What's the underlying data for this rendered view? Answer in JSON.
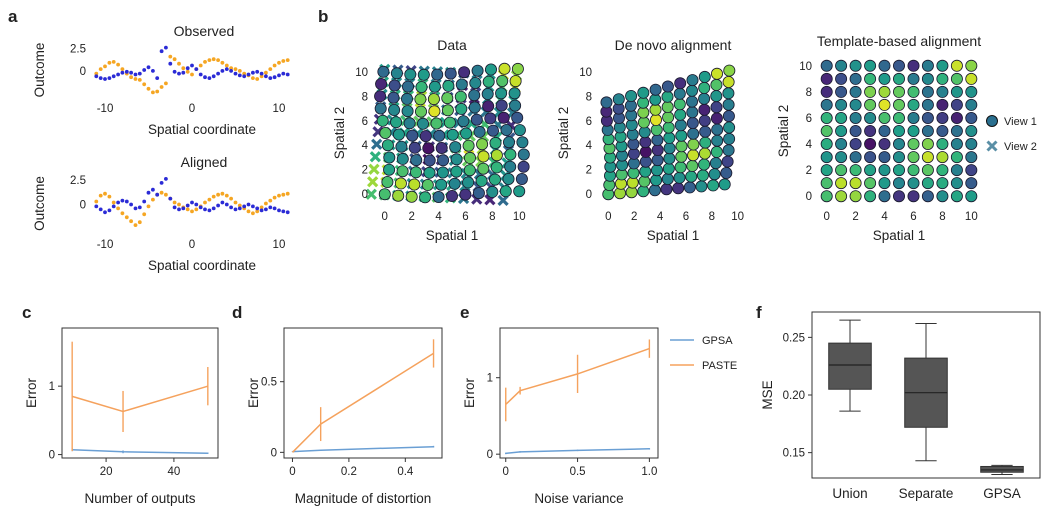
{
  "panels": {
    "a": "a",
    "b": "b",
    "c": "c",
    "d": "d",
    "e": "e",
    "f": "f"
  },
  "chart_data": [
    {
      "id": "a-observed",
      "type": "scatter",
      "title": "Observed",
      "xlabel": "Spatial coordinate",
      "ylabel": "Outcome",
      "xlim": [
        -11.5,
        11.5
      ],
      "ylim": [
        -2.8,
        3.0
      ],
      "xticks": [
        "-10",
        "0",
        "10"
      ],
      "xtick_values": [
        -10,
        0,
        10
      ],
      "yticks": [
        "0",
        "2.5"
      ],
      "ytick_values": [
        0,
        2.5
      ],
      "series": [
        {
          "color": "#f5a623",
          "x": [
            -11,
            -10.5,
            -10,
            -9.5,
            -9,
            -8.5,
            -8,
            -7.5,
            -7,
            -6.5,
            -6,
            -5.5,
            -5,
            -4.5,
            -4,
            -3.5,
            -3,
            -2.5,
            -2,
            -1.5,
            -1,
            -0.5,
            0,
            0.5,
            1,
            1.5,
            2,
            2.5,
            3,
            3.5,
            4,
            4.5,
            5,
            5.5,
            6,
            6.5,
            7,
            7.5,
            8,
            8.5,
            9,
            9.5,
            10,
            10.5,
            11
          ],
          "y": [
            -0.3,
            0.2,
            0.5,
            0.9,
            1.0,
            0.7,
            0.2,
            -0.3,
            -0.7,
            -0.9,
            -1.0,
            -1.5,
            -2.0,
            -2.4,
            -2.3,
            -1.8,
            -1.4,
            1.6,
            1.3,
            0.8,
            0.3,
            -0.1,
            -0.4,
            0.2,
            0.6,
            1.0,
            1.2,
            1.3,
            1.2,
            0.9,
            0.6,
            0.3,
            0.2,
            0.0,
            -0.3,
            -0.5,
            -0.8,
            -0.9,
            -0.6,
            -0.2,
            0.2,
            0.6,
            0.9,
            1.1,
            1.2
          ]
        },
        {
          "color": "#2b2bd6",
          "x": [
            -11,
            -10.5,
            -10,
            -9.5,
            -9,
            -8.5,
            -8,
            -7.5,
            -7,
            -6.5,
            -6,
            -5.5,
            -5,
            -4.5,
            -4,
            -3.5,
            -3,
            -2.5,
            -2,
            -1.5,
            -1,
            -0.5,
            0,
            0.5,
            1,
            1.5,
            2,
            2.5,
            3,
            3.5,
            4,
            4.5,
            5,
            5.5,
            6,
            6.5,
            7,
            7.5,
            8,
            8.5,
            9,
            9.5,
            10,
            10.5,
            11
          ],
          "y": [
            -0.6,
            -0.8,
            -0.9,
            -0.8,
            -0.6,
            -0.4,
            -0.2,
            -0.1,
            -0.2,
            -0.4,
            -0.3,
            0.1,
            0.4,
            0.0,
            -0.8,
            2.2,
            2.6,
            0.8,
            -0.1,
            -0.3,
            -0.2,
            0.3,
            0.6,
            0.2,
            -0.4,
            -0.7,
            -0.8,
            -0.6,
            -0.3,
            0.0,
            0.2,
            0.0,
            -0.3,
            -0.5,
            -0.6,
            -0.4,
            -0.2,
            -0.1,
            -0.3,
            -0.6,
            -0.8,
            -0.7,
            -0.5,
            -0.3,
            -0.4
          ]
        }
      ]
    },
    {
      "id": "a-aligned",
      "type": "scatter",
      "title": "Aligned",
      "xlabel": "Spatial coordinate",
      "ylabel": "Outcome",
      "xlim": [
        -11.5,
        11.5
      ],
      "ylim": [
        -2.8,
        3.0
      ],
      "xticks": [
        "-10",
        "0",
        "10"
      ],
      "xtick_values": [
        -10,
        0,
        10
      ],
      "yticks": [
        "0",
        "2.5"
      ],
      "ytick_values": [
        0,
        2.5
      ],
      "series": [
        {
          "color": "#f5a623",
          "x": [
            -11,
            -10.5,
            -10,
            -9.5,
            -9,
            -8.5,
            -8,
            -7.5,
            -7,
            -6.5,
            -6,
            -5.5,
            -5,
            -4.5,
            -4,
            -3.5,
            -3,
            -2.5,
            -2,
            -1.5,
            -1,
            -0.5,
            0,
            0.5,
            1,
            1.5,
            2,
            2.5,
            3,
            3.5,
            4,
            4.5,
            5,
            5.5,
            6,
            6.5,
            7,
            7.5,
            8,
            8.5,
            9,
            9.5,
            10,
            10.5,
            11
          ],
          "y": [
            0.3,
            0.9,
            1.1,
            0.8,
            0.2,
            -0.4,
            -0.9,
            -1.3,
            -1.7,
            -2.1,
            -1.8,
            -1.0,
            -0.2,
            0.5,
            1.0,
            1.2,
            1.0,
            0.6,
            0.2,
            0.0,
            -0.3,
            -0.5,
            -0.7,
            -0.5,
            -0.2,
            0.2,
            0.5,
            0.8,
            1.0,
            1.1,
            0.9,
            0.6,
            0.2,
            -0.1,
            -0.4,
            -0.7,
            -0.9,
            -0.7,
            -0.3,
            0.1,
            0.4,
            0.7,
            0.9,
            1.0,
            1.1
          ]
        },
        {
          "color": "#2b2bd6",
          "x": [
            -11,
            -10.5,
            -10,
            -9.5,
            -9,
            -8.5,
            -8,
            -7.5,
            -7,
            -6.5,
            -6,
            -5.5,
            -5,
            -4.5,
            -4,
            -3.5,
            -3,
            -2.5,
            -2,
            -1.5,
            -1,
            -0.5,
            0,
            0.5,
            1,
            1.5,
            2,
            2.5,
            3,
            3.5,
            4,
            4.5,
            5,
            5.5,
            6,
            6.5,
            7,
            7.5,
            8,
            8.5,
            9,
            9.5,
            10,
            10.5,
            11
          ],
          "y": [
            -0.2,
            -0.5,
            -0.8,
            -0.6,
            -0.2,
            0.2,
            0.4,
            0.3,
            0.0,
            -0.4,
            -0.3,
            0.3,
            1.2,
            1.5,
            1.0,
            2.2,
            2.6,
            0.6,
            -0.3,
            -0.5,
            -0.4,
            -0.1,
            0.2,
            0.0,
            -0.3,
            -0.5,
            -0.6,
            -0.4,
            -0.1,
            0.2,
            0.0,
            -0.3,
            -0.5,
            -0.4,
            -0.2,
            0.0,
            -0.2,
            -0.4,
            -0.6,
            -0.5,
            -0.3,
            -0.4,
            -0.6,
            -0.7,
            -0.8
          ]
        }
      ]
    },
    {
      "id": "b-data",
      "type": "scatter",
      "title": "Data",
      "xlabel": "Spatial 1",
      "ylabel": "Spatial 2",
      "xlim": [
        -0.8,
        10.8
      ],
      "ylim": [
        -0.8,
        10.8
      ],
      "xticks": [
        "0",
        "2",
        "4",
        "6",
        "8",
        "10"
      ],
      "yticks": [
        "0",
        "2",
        "4",
        "6",
        "8",
        "10"
      ],
      "grid_n": 11,
      "grid_distortion": "data",
      "legend": [
        {
          "marker": "circle",
          "label": "View 1"
        },
        {
          "marker": "x",
          "label": "View 2"
        }
      ]
    },
    {
      "id": "b-denovo",
      "type": "scatter",
      "title": "De novo alignment",
      "xlabel": "Spatial 1",
      "ylabel": "Spatial 2",
      "xlim": [
        -0.8,
        10.8
      ],
      "ylim": [
        -0.8,
        10.8
      ],
      "xticks": [
        "0",
        "2",
        "4",
        "6",
        "8",
        "10"
      ],
      "yticks": [
        "0",
        "2",
        "4",
        "6",
        "8",
        "10"
      ],
      "grid_n": 11,
      "grid_distortion": "denovo"
    },
    {
      "id": "b-template",
      "type": "scatter",
      "title": "Template-based alignment",
      "xlabel": "Spatial 1",
      "ylabel": "Spatial 2",
      "xlim": [
        -0.6,
        10.6
      ],
      "ylim": [
        -0.6,
        10.6
      ],
      "xticks": [
        "0",
        "2",
        "4",
        "6",
        "8",
        "10"
      ],
      "yticks": [
        "0",
        "2",
        "4",
        "6",
        "8",
        "10"
      ],
      "grid_n": 11,
      "grid_distortion": "none"
    },
    {
      "id": "c",
      "type": "line",
      "xlabel": "Number of outputs",
      "ylabel": "Error",
      "xlim": [
        7,
        53
      ],
      "ylim": [
        -0.05,
        1.85
      ],
      "xticks": [
        "20",
        "40"
      ],
      "xtick_values": [
        20,
        40
      ],
      "yticks": [
        "0",
        "1"
      ],
      "ytick_values": [
        0,
        1
      ],
      "series": [
        {
          "name": "GPSA",
          "color": "#6a9fd4",
          "x": [
            10,
            25,
            50
          ],
          "y": [
            0.07,
            0.04,
            0.02
          ],
          "err": [
            0.02,
            0.02,
            0.01
          ]
        },
        {
          "name": "PASTE",
          "color": "#f5a25d",
          "x": [
            10,
            25,
            50
          ],
          "y": [
            0.85,
            0.63,
            1.0
          ],
          "err": [
            0.8,
            0.3,
            0.28
          ]
        }
      ]
    },
    {
      "id": "d",
      "type": "line",
      "xlabel": "Magnitude of distortion",
      "ylabel": "Error",
      "xlim": [
        -0.03,
        0.53
      ],
      "ylim": [
        -0.04,
        0.88
      ],
      "xticks": [
        "0",
        "0.2",
        "0.4"
      ],
      "xtick_values": [
        0,
        0.2,
        0.4
      ],
      "yticks": [
        "0",
        "0.5"
      ],
      "ytick_values": [
        0,
        0.5
      ],
      "series": [
        {
          "name": "GPSA",
          "color": "#6a9fd4",
          "x": [
            0,
            0.1,
            0.5
          ],
          "y": [
            0.005,
            0.015,
            0.04
          ],
          "err": [
            0.003,
            0.005,
            0.006
          ]
        },
        {
          "name": "PASTE",
          "color": "#f5a25d",
          "x": [
            0,
            0.1,
            0.5
          ],
          "y": [
            0.0,
            0.2,
            0.7
          ],
          "err": [
            0.0,
            0.12,
            0.1
          ]
        }
      ]
    },
    {
      "id": "e",
      "type": "line",
      "xlabel": "Noise variance",
      "ylabel": "Error",
      "xlim": [
        -0.04,
        1.06
      ],
      "ylim": [
        -0.05,
        1.65
      ],
      "xticks": [
        "0",
        "0.5",
        "1.0"
      ],
      "xtick_values": [
        0,
        0.5,
        1.0
      ],
      "yticks": [
        "0",
        "1"
      ],
      "ytick_values": [
        0,
        1
      ],
      "legend": [
        {
          "name": "GPSA",
          "color": "#6a9fd4"
        },
        {
          "name": "PASTE",
          "color": "#f5a25d"
        }
      ],
      "series": [
        {
          "name": "GPSA",
          "color": "#6a9fd4",
          "x": [
            0,
            0.1,
            0.5,
            1.0
          ],
          "y": [
            0.01,
            0.03,
            0.05,
            0.07
          ],
          "err": [
            0.01,
            0.01,
            0.01,
            0.01
          ]
        },
        {
          "name": "PASTE",
          "color": "#f5a25d",
          "x": [
            0,
            0.1,
            0.5,
            1.0
          ],
          "y": [
            0.65,
            0.83,
            1.05,
            1.38
          ],
          "err": [
            0.22,
            0.05,
            0.25,
            0.12
          ]
        }
      ]
    },
    {
      "id": "f",
      "type": "box",
      "ylabel": "MSE",
      "ylim": [
        0.128,
        0.272
      ],
      "yticks": [
        "0.15",
        "0.20",
        "0.25"
      ],
      "ytick_values": [
        0.15,
        0.2,
        0.25
      ],
      "categories": [
        "Union",
        "Separate",
        "GPSA"
      ],
      "boxes": [
        {
          "min": 0.186,
          "q1": 0.205,
          "median": 0.226,
          "q3": 0.245,
          "max": 0.265
        },
        {
          "min": 0.143,
          "q1": 0.172,
          "median": 0.202,
          "q3": 0.232,
          "max": 0.262
        },
        {
          "min": 0.131,
          "q1": 0.133,
          "median": 0.135,
          "q3": 0.138,
          "max": 0.139
        }
      ],
      "color": "#555555"
    }
  ]
}
